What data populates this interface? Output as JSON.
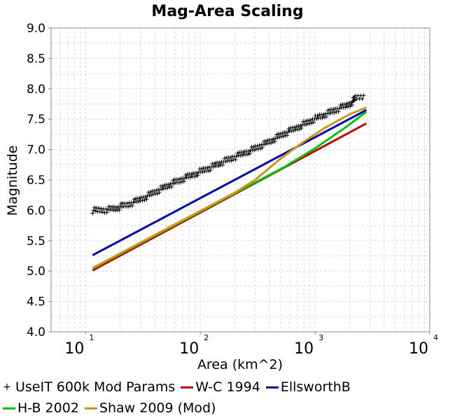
{
  "chart_data": {
    "type": "scatter",
    "title": "Mag-Area Scaling",
    "xlabel": "Area (km^2)",
    "ylabel": "Magnitude",
    "x_scale": "log",
    "xlim": [
      5,
      10000
    ],
    "ylim": [
      4.0,
      9.0
    ],
    "x_ticks": [
      {
        "base": "10",
        "exp": "1",
        "value": 10
      },
      {
        "base": "10",
        "exp": "2",
        "value": 100
      },
      {
        "base": "10",
        "exp": "3",
        "value": 1000
      },
      {
        "base": "10",
        "exp": "4",
        "value": 10000
      }
    ],
    "y_ticks": [
      "4.0",
      "4.5",
      "5.0",
      "5.5",
      "6.0",
      "6.5",
      "7.0",
      "7.5",
      "8.0",
      "8.5",
      "9.0"
    ],
    "grid": true,
    "legend_position": "bottom",
    "series": [
      {
        "name": "UseIT 600k Mod Params",
        "kind": "scatter",
        "marker": "plus",
        "color": "#000000",
        "points": [
          [
            11.5,
            6.0
          ],
          [
            13,
            6.0
          ],
          [
            15,
            6.01
          ],
          [
            17,
            6.02
          ],
          [
            19,
            6.04
          ],
          [
            21,
            6.07
          ],
          [
            24,
            6.1
          ],
          [
            27,
            6.14
          ],
          [
            30,
            6.18
          ],
          [
            34,
            6.23
          ],
          [
            38,
            6.28
          ],
          [
            43,
            6.33
          ],
          [
            48,
            6.37
          ],
          [
            54,
            6.42
          ],
          [
            60,
            6.46
          ],
          [
            68,
            6.5
          ],
          [
            76,
            6.54
          ],
          [
            85,
            6.58
          ],
          [
            95,
            6.62
          ],
          [
            107,
            6.66
          ],
          [
            120,
            6.7
          ],
          [
            135,
            6.74
          ],
          [
            150,
            6.78
          ],
          [
            170,
            6.82
          ],
          [
            190,
            6.86
          ],
          [
            215,
            6.9
          ],
          [
            240,
            6.94
          ],
          [
            270,
            6.98
          ],
          [
            300,
            7.02
          ],
          [
            340,
            7.07
          ],
          [
            380,
            7.11
          ],
          [
            430,
            7.16
          ],
          [
            480,
            7.21
          ],
          [
            540,
            7.26
          ],
          [
            600,
            7.3
          ],
          [
            680,
            7.35
          ],
          [
            760,
            7.4
          ],
          [
            850,
            7.44
          ],
          [
            950,
            7.49
          ],
          [
            1070,
            7.53
          ],
          [
            1200,
            7.57
          ],
          [
            1350,
            7.61
          ],
          [
            1500,
            7.65
          ],
          [
            1700,
            7.69
          ],
          [
            1900,
            7.73
          ],
          [
            2100,
            7.78
          ],
          [
            2250,
            7.85
          ],
          [
            2650,
            7.89
          ]
        ]
      },
      {
        "name": "W-C 1994",
        "kind": "line",
        "color": "#c00000",
        "points": [
          [
            11.5,
            5.01
          ],
          [
            2800,
            7.43
          ]
        ]
      },
      {
        "name": "EllsworthB",
        "kind": "line",
        "color": "#0000a8",
        "points": [
          [
            11.5,
            5.26
          ],
          [
            2800,
            7.65
          ]
        ]
      },
      {
        "name": "H-B 2002",
        "kind": "line",
        "color": "#00c000",
        "points": [
          [
            11.5,
            5.04
          ],
          [
            50,
            5.68
          ],
          [
            200,
            6.28
          ],
          [
            537,
            6.71
          ],
          [
            1000,
            7.02
          ],
          [
            1800,
            7.35
          ],
          [
            2800,
            7.62
          ]
        ]
      },
      {
        "name": "Shaw 2009 (Mod)",
        "kind": "line",
        "color": "#c8961e",
        "points": [
          [
            11.5,
            5.05
          ],
          [
            50,
            5.69
          ],
          [
            200,
            6.29
          ],
          [
            300,
            6.5
          ],
          [
            500,
            6.85
          ],
          [
            800,
            7.13
          ],
          [
            1200,
            7.35
          ],
          [
            2000,
            7.58
          ],
          [
            2800,
            7.69
          ]
        ]
      }
    ]
  }
}
